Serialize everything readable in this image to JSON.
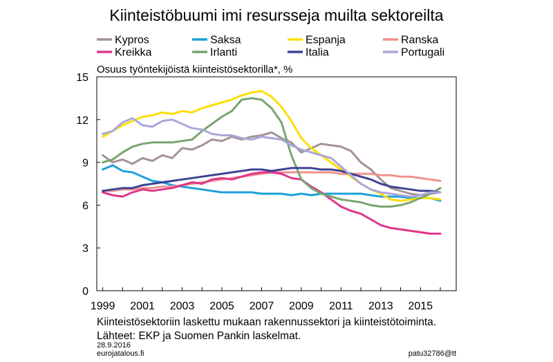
{
  "chart_data": {
    "type": "line",
    "title": "Kiinteistöbuumi imi resursseja muilta sektoreilta",
    "ylabel": "Osuus työntekijöistä kiinteistösektorilla*, %",
    "xlabel": "",
    "xlim": [
      1998.7,
      2016.8
    ],
    "ylim": [
      0,
      15
    ],
    "yticks": [
      0,
      3,
      6,
      9,
      12,
      15
    ],
    "xticks": [
      1999,
      2001,
      2003,
      2005,
      2007,
      2009,
      2011,
      2013,
      2015
    ],
    "grid": false,
    "legend_position": "top",
    "footnote": "Kiinteistösektoriin laskettu mukaan rakennussektori ja kiinteistötoiminta.",
    "sources": "Lähteet: EKP ja Suomen Pankin laskelmat.",
    "date": "28.9.2016",
    "site": "eurojatalous.fi",
    "code": "patu32786@tt",
    "series": [
      {
        "name": "Kypros",
        "color": "#a39393",
        "x": [
          1999,
          1999.5,
          2000,
          2000.5,
          2001,
          2001.5,
          2002,
          2002.5,
          2003,
          2003.5,
          2004,
          2004.5,
          2005,
          2005.5,
          2006,
          2006.5,
          2007,
          2007.5,
          2008,
          2008.5,
          2009,
          2009.5,
          2010,
          2010.5,
          2011,
          2011.5,
          2012,
          2012.5,
          2013,
          2013.5,
          2014,
          2014.5,
          2015,
          2015.5,
          2016
        ],
        "values": [
          9.5,
          9.0,
          9.2,
          8.9,
          9.3,
          9.1,
          9.5,
          9.3,
          10.0,
          9.9,
          10.2,
          10.6,
          10.5,
          10.8,
          10.6,
          10.8,
          10.9,
          11.1,
          10.7,
          10.4,
          9.7,
          10.0,
          10.3,
          10.2,
          10.1,
          9.8,
          9.0,
          8.5,
          7.8,
          7.2,
          7.0,
          6.8,
          6.7,
          6.8,
          6.9
        ]
      },
      {
        "name": "Saksa",
        "color": "#1ca1da",
        "x": [
          1999,
          1999.5,
          2000,
          2000.5,
          2001,
          2001.5,
          2002,
          2002.5,
          2003,
          2003.5,
          2004,
          2004.5,
          2005,
          2005.5,
          2006,
          2006.5,
          2007,
          2007.5,
          2008,
          2008.5,
          2009,
          2009.5,
          2010,
          2010.5,
          2011,
          2011.5,
          2012,
          2012.5,
          2013,
          2013.5,
          2014,
          2014.5,
          2015,
          2015.5,
          2016
        ],
        "values": [
          8.5,
          8.8,
          8.4,
          8.3,
          8.0,
          7.7,
          7.6,
          7.4,
          7.3,
          7.2,
          7.1,
          7.0,
          6.9,
          6.9,
          6.9,
          6.9,
          6.8,
          6.8,
          6.8,
          6.7,
          6.8,
          6.7,
          6.8,
          6.8,
          6.8,
          6.8,
          6.8,
          6.7,
          6.6,
          6.6,
          6.6,
          6.5,
          6.5,
          6.5,
          6.3
        ]
      },
      {
        "name": "Espanja",
        "color": "#ffde00",
        "x": [
          1999,
          1999.5,
          2000,
          2000.5,
          2001,
          2001.5,
          2002,
          2002.5,
          2003,
          2003.5,
          2004,
          2004.5,
          2005,
          2005.5,
          2006,
          2006.5,
          2007,
          2007.5,
          2008,
          2008.5,
          2009,
          2009.5,
          2010,
          2010.5,
          2011,
          2011.5,
          2012,
          2012.5,
          2013,
          2013.5,
          2014,
          2014.5,
          2015,
          2015.5,
          2016
        ],
        "values": [
          10.8,
          11.2,
          11.6,
          11.9,
          12.2,
          12.3,
          12.5,
          12.4,
          12.6,
          12.5,
          12.8,
          13.0,
          13.2,
          13.4,
          13.7,
          13.9,
          14.0,
          13.6,
          12.9,
          11.9,
          10.7,
          10.0,
          9.5,
          9.0,
          8.5,
          8.0,
          7.5,
          7.1,
          6.8,
          6.4,
          6.3,
          6.4,
          6.5,
          6.5,
          6.4
        ]
      },
      {
        "name": "Ranska",
        "color": "#f0918c",
        "x": [
          1999,
          1999.5,
          2000,
          2000.5,
          2001,
          2001.5,
          2002,
          2002.5,
          2003,
          2003.5,
          2004,
          2004.5,
          2005,
          2005.5,
          2006,
          2006.5,
          2007,
          2007.5,
          2008,
          2008.5,
          2009,
          2009.5,
          2010,
          2010.5,
          2011,
          2011.5,
          2012,
          2012.5,
          2013,
          2013.5,
          2014,
          2014.5,
          2015,
          2015.5,
          2016
        ],
        "values": [
          7.0,
          7.0,
          7.1,
          7.1,
          7.2,
          7.2,
          7.3,
          7.3,
          7.4,
          7.5,
          7.6,
          7.7,
          7.8,
          7.9,
          8.0,
          8.1,
          8.2,
          8.3,
          8.3,
          8.3,
          8.3,
          8.3,
          8.3,
          8.3,
          8.2,
          8.2,
          8.2,
          8.2,
          8.1,
          8.1,
          8.0,
          8.0,
          7.9,
          7.8,
          7.7
        ]
      },
      {
        "name": "Kreikka",
        "color": "#e0358a",
        "x": [
          1999,
          1999.5,
          2000,
          2000.5,
          2001,
          2001.5,
          2002,
          2002.5,
          2003,
          2003.5,
          2004,
          2004.5,
          2005,
          2005.5,
          2006,
          2006.5,
          2007,
          2007.5,
          2008,
          2008.5,
          2009,
          2009.5,
          2010,
          2010.5,
          2011,
          2011.5,
          2012,
          2012.5,
          2013,
          2013.5,
          2014,
          2014.5,
          2015,
          2015.5,
          2016
        ],
        "values": [
          6.9,
          6.7,
          6.6,
          6.9,
          7.1,
          7.0,
          7.1,
          7.2,
          7.4,
          7.6,
          7.5,
          7.8,
          7.9,
          7.8,
          8.0,
          8.2,
          8.3,
          8.3,
          8.2,
          7.9,
          7.8,
          7.3,
          6.9,
          6.4,
          5.9,
          5.6,
          5.4,
          5.0,
          4.6,
          4.4,
          4.3,
          4.2,
          4.1,
          4.0,
          4.0
        ]
      },
      {
        "name": "Irlanti",
        "color": "#79a470",
        "x": [
          1999,
          1999.5,
          2000,
          2000.5,
          2001,
          2001.5,
          2002,
          2002.5,
          2003,
          2003.5,
          2004,
          2004.5,
          2005,
          2005.5,
          2006,
          2006.5,
          2007,
          2007.5,
          2008,
          2008.5,
          2009,
          2009.5,
          2010,
          2010.5,
          2011,
          2011.5,
          2012,
          2012.5,
          2013,
          2013.5,
          2014,
          2014.5,
          2015,
          2015.5,
          2016
        ],
        "values": [
          9.0,
          9.2,
          9.7,
          10.1,
          10.3,
          10.4,
          10.4,
          10.4,
          10.5,
          10.6,
          11.2,
          11.7,
          12.2,
          12.6,
          13.4,
          13.5,
          13.4,
          12.8,
          11.8,
          9.5,
          7.8,
          7.2,
          6.8,
          6.6,
          6.4,
          6.3,
          6.2,
          6.0,
          5.9,
          5.9,
          6.0,
          6.2,
          6.5,
          6.8,
          7.2
        ]
      },
      {
        "name": "Italia",
        "color": "#3e4395",
        "x": [
          1999,
          1999.5,
          2000,
          2000.5,
          2001,
          2001.5,
          2002,
          2002.5,
          2003,
          2003.5,
          2004,
          2004.5,
          2005,
          2005.5,
          2006,
          2006.5,
          2007,
          2007.5,
          2008,
          2008.5,
          2009,
          2009.5,
          2010,
          2010.5,
          2011,
          2011.5,
          2012,
          2012.5,
          2013,
          2013.5,
          2014,
          2014.5,
          2015,
          2015.5,
          2016
        ],
        "values": [
          7.0,
          7.1,
          7.2,
          7.2,
          7.4,
          7.5,
          7.6,
          7.7,
          7.8,
          7.9,
          8.0,
          8.1,
          8.2,
          8.3,
          8.4,
          8.5,
          8.5,
          8.4,
          8.5,
          8.6,
          8.6,
          8.6,
          8.5,
          8.5,
          8.4,
          8.2,
          8.0,
          7.8,
          7.5,
          7.3,
          7.2,
          7.1,
          7.0,
          7.0,
          6.9
        ]
      },
      {
        "name": "Portugali",
        "color": "#a9a8d9",
        "x": [
          1999,
          1999.5,
          2000,
          2000.5,
          2001,
          2001.5,
          2002,
          2002.5,
          2003,
          2003.5,
          2004,
          2004.5,
          2005,
          2005.5,
          2006,
          2006.5,
          2007,
          2007.5,
          2008,
          2008.5,
          2009,
          2009.5,
          2010,
          2010.5,
          2011,
          2011.5,
          2012,
          2012.5,
          2013,
          2013.5,
          2014,
          2014.5,
          2015,
          2015.5,
          2016
        ],
        "values": [
          11.0,
          11.2,
          11.8,
          12.1,
          11.6,
          11.5,
          11.9,
          12.0,
          11.7,
          11.4,
          11.3,
          11.0,
          10.9,
          10.9,
          10.7,
          10.6,
          10.8,
          10.7,
          10.6,
          10.2,
          9.9,
          9.7,
          9.5,
          9.3,
          8.7,
          8.1,
          7.5,
          7.1,
          6.9,
          6.8,
          6.7,
          6.6,
          6.7,
          6.9,
          6.9
        ]
      }
    ]
  }
}
